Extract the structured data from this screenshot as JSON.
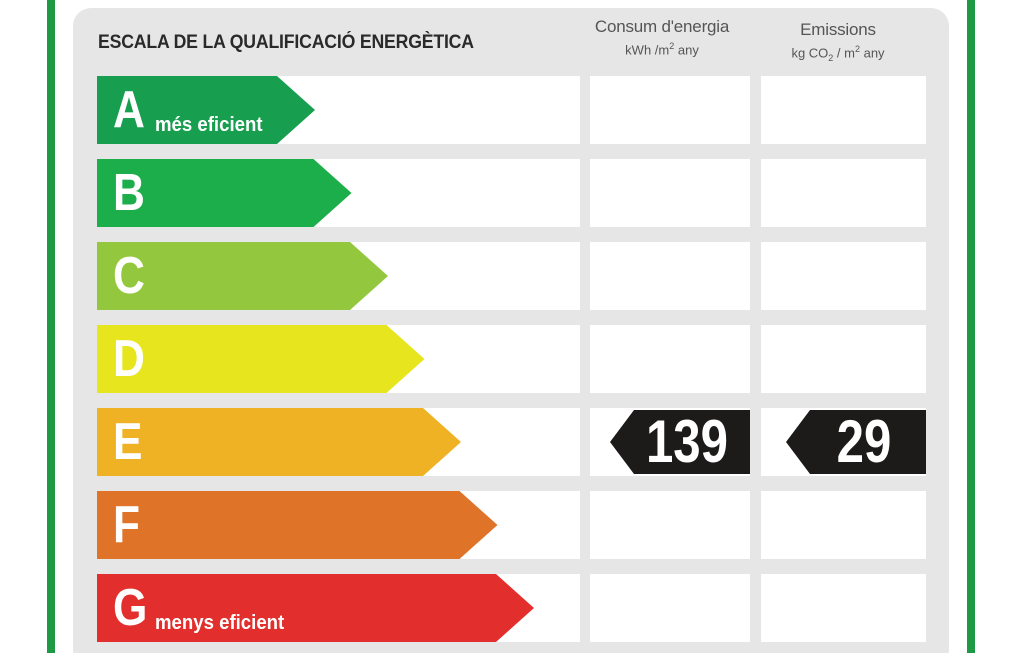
{
  "header": {
    "scale_title": "ESCALA DE LA QUALIFICACIÓ ENERGÈTICA",
    "energy": {
      "title": "Consum d'energia",
      "unit_pre": "kWh /m",
      "unit_sup": "2",
      "unit_post": " any"
    },
    "emissions": {
      "title": "Emissions",
      "unit_pre": "kg CO",
      "unit_sub": "2",
      "unit_mid": " / m",
      "unit_sup": "2",
      "unit_post": " any"
    }
  },
  "grades": [
    {
      "letter": "A",
      "note": "més eficient",
      "color": "#179e4f",
      "level": 1
    },
    {
      "letter": "B",
      "note": "",
      "color": "#1cae4b",
      "level": 2
    },
    {
      "letter": "C",
      "note": "",
      "color": "#93c83e",
      "level": 3
    },
    {
      "letter": "D",
      "note": "",
      "color": "#e7e61e",
      "level": 4
    },
    {
      "letter": "E",
      "note": "",
      "color": "#efb224",
      "level": 5
    },
    {
      "letter": "F",
      "note": "",
      "color": "#df7428",
      "level": 6
    },
    {
      "letter": "G",
      "note": "menys eficient",
      "color": "#e22e2c",
      "level": 7
    }
  ],
  "rating": {
    "grade": "E",
    "energy_value": "139",
    "emissions_value": "29",
    "badge_color": "#1d1a1a"
  },
  "colors": {
    "frame": "#1e9a45",
    "panel": "#e6e6e6"
  }
}
